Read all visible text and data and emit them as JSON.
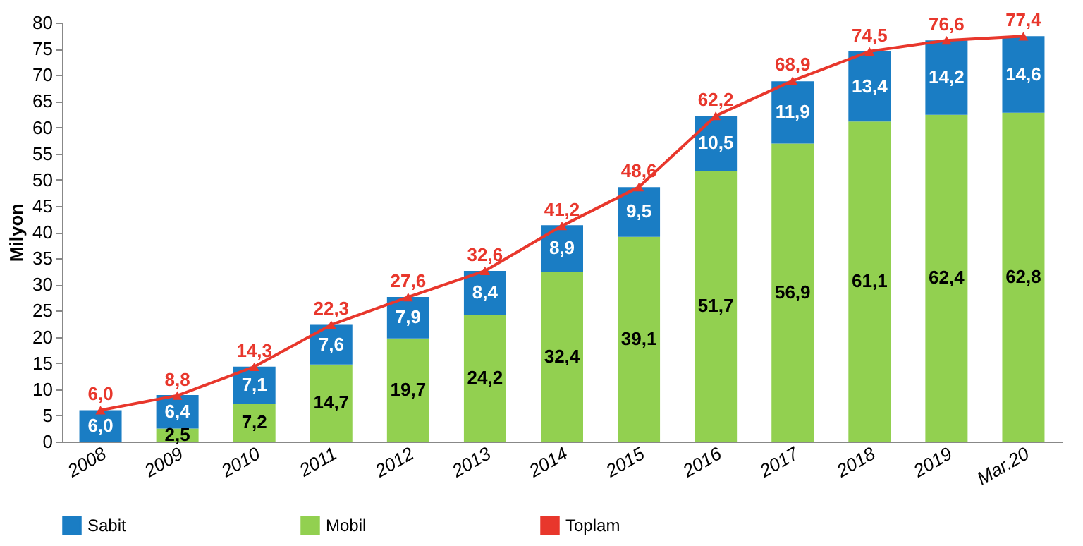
{
  "chart_data": {
    "type": "bar",
    "stacked": true,
    "ylabel": "Milyon",
    "categories": [
      "2008",
      "2009",
      "2010",
      "2011",
      "2012",
      "2013",
      "2014",
      "2015",
      "2016",
      "2017",
      "2018",
      "2019",
      "Mar.20"
    ],
    "ylim": [
      0,
      80
    ],
    "yticks": [
      0,
      5,
      10,
      15,
      20,
      25,
      30,
      35,
      40,
      45,
      50,
      55,
      60,
      65,
      70,
      75,
      80
    ],
    "grid": false,
    "legend": "bottom",
    "series": [
      {
        "name": "Mobil",
        "color": "#92d050",
        "values": [
          null,
          2.5,
          7.2,
          14.7,
          19.7,
          24.2,
          32.4,
          39.1,
          51.7,
          56.9,
          61.1,
          62.4,
          62.8
        ],
        "value_labels": [
          null,
          "2,5",
          "7,2",
          "14,7",
          "19,7",
          "24,2",
          "32,4",
          "39,1",
          "51,7",
          "56,9",
          "61,1",
          "62,4",
          "62,8"
        ]
      },
      {
        "name": "Sabit",
        "color": "#1a7dc4",
        "values": [
          6.0,
          6.4,
          7.1,
          7.6,
          7.9,
          8.4,
          8.9,
          9.5,
          10.5,
          11.9,
          13.4,
          14.2,
          14.6
        ],
        "value_labels": [
          "6,0",
          "6,4",
          "7,1",
          "7,6",
          "7,9",
          "8,4",
          "8,9",
          "9,5",
          "10,5",
          "11,9",
          "13,4",
          "14,2",
          "14,6"
        ]
      },
      {
        "name": "Toplam",
        "type": "line",
        "marker": "triangle",
        "line_style": "solid",
        "color": "#e8372c",
        "values": [
          6.0,
          8.8,
          14.3,
          22.3,
          27.6,
          32.6,
          41.2,
          48.6,
          62.2,
          68.9,
          74.5,
          76.6,
          77.4
        ],
        "value_labels": [
          "6,0",
          "8,8",
          "14,3",
          "22,3",
          "27,6",
          "32,6",
          "41,2",
          "48,6",
          "62,2",
          "68,9",
          "74,5",
          "76,6",
          "77,4"
        ]
      }
    ]
  }
}
